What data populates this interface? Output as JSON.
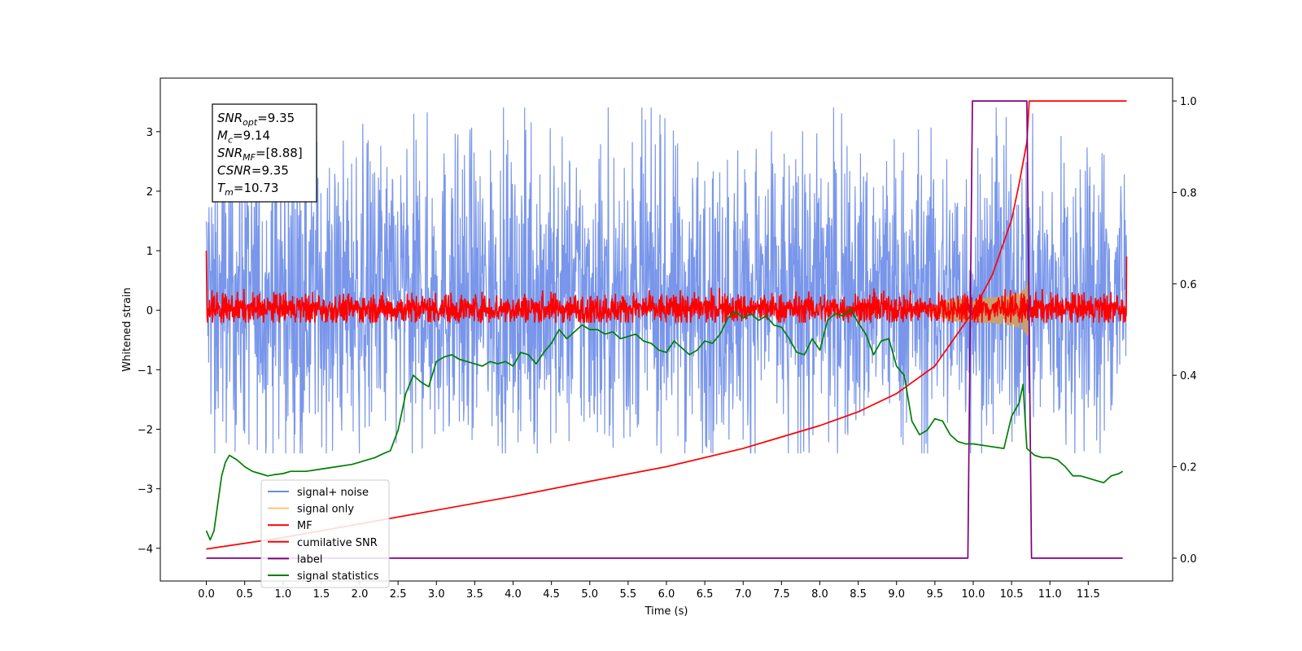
{
  "chart_data": {
    "type": "line",
    "title": "",
    "xlabel": "Time (s)",
    "ylabel": "Whitened strain",
    "ylabel_right": "",
    "xlim": [
      -0.6,
      12.6
    ],
    "ylim": [
      -4.55,
      3.9
    ],
    "ylim_right": [
      -0.05,
      1.05
    ],
    "x_ticks": [
      "0.0",
      "0.5",
      "1.0",
      "1.5",
      "2.0",
      "2.5",
      "3.0",
      "3.5",
      "4.0",
      "4.5",
      "5.0",
      "5.5",
      "6.0",
      "6.5",
      "7.0",
      "7.5",
      "8.0",
      "8.5",
      "9.0",
      "9.5",
      "10.0",
      "10.5",
      "11.0",
      "11.5"
    ],
    "y_ticks": [
      "3",
      "2",
      "1",
      "0",
      "−1",
      "−2",
      "−3",
      "−4"
    ],
    "y_right_ticks": [
      "1.0",
      "0.8",
      "0.6",
      "0.4",
      "0.2",
      "0.0"
    ],
    "legend_position": "lower-left",
    "legend": [
      {
        "name": "signal+ noise",
        "color": "#6a8be8"
      },
      {
        "name": "signal only",
        "color": "#f5c96e"
      },
      {
        "name": "MF",
        "color": "#ff0000"
      },
      {
        "name": "cumilative SNR",
        "color": "#ff0000"
      },
      {
        "name": "label",
        "color": "#800080"
      },
      {
        "name": "signal statistics",
        "color": "#007f00"
      }
    ],
    "annotation": [
      {
        "name": "SNR",
        "sub": "opt",
        "value": "=9.35"
      },
      {
        "name": "M",
        "sub": "c",
        "value": "=9.14"
      },
      {
        "name": "SNR",
        "sub": "MF",
        "value": "=[8.88]"
      },
      {
        "name": "CSNR",
        "sub": "",
        "value": "=9.35"
      },
      {
        "name": "T",
        "sub": "m",
        "value": "=10.73"
      }
    ],
    "series": [
      {
        "name": "signal+ noise",
        "axis": "left",
        "style": "noise",
        "color": "#6a8be8",
        "x_range": [
          0.0,
          12.0
        ],
        "envelope": [
          -2.4,
          3.4
        ],
        "band": [
          -1.5,
          2.0
        ]
      },
      {
        "name": "signal only",
        "axis": "left",
        "style": "chirp",
        "color": "#c8a070",
        "x_range": [
          9.4,
          10.73
        ],
        "amplitude_max": 0.75
      },
      {
        "name": "MF",
        "axis": "left",
        "style": "noise",
        "color": "#ff0000",
        "x_range": [
          0.0,
          12.0
        ],
        "band": [
          -0.15,
          0.2
        ],
        "envelope": [
          -0.2,
          0.38
        ],
        "start_value": 1.0,
        "end_value": 0.9
      },
      {
        "name": "cumilative SNR",
        "axis": "right",
        "color": "#ff0000",
        "x": [
          0.0,
          1.0,
          2.0,
          3.0,
          4.0,
          5.0,
          6.0,
          7.0,
          7.5,
          8.0,
          8.5,
          9.0,
          9.5,
          10.0,
          10.25,
          10.5,
          10.6,
          10.7,
          10.73,
          11.0,
          12.0
        ],
        "y": [
          0.02,
          0.045,
          0.075,
          0.105,
          0.135,
          0.168,
          0.2,
          0.24,
          0.265,
          0.29,
          0.32,
          0.36,
          0.42,
          0.54,
          0.62,
          0.74,
          0.82,
          0.91,
          1.0,
          1.0,
          1.0
        ]
      },
      {
        "name": "label",
        "axis": "right",
        "color": "#800080",
        "x": [
          0.0,
          9.93,
          9.99,
          10.7,
          10.76,
          11.95
        ],
        "y": [
          0.0,
          0.0,
          1.0,
          1.0,
          0.0,
          0.0
        ]
      },
      {
        "name": "signal statistics",
        "axis": "right",
        "color": "#007f00",
        "x": [
          0.0,
          0.05,
          0.1,
          0.15,
          0.2,
          0.25,
          0.3,
          0.4,
          0.5,
          0.6,
          0.7,
          0.8,
          0.9,
          1.0,
          1.1,
          1.3,
          1.5,
          1.7,
          1.9,
          2.0,
          2.1,
          2.2,
          2.3,
          2.4,
          2.5,
          2.6,
          2.7,
          2.8,
          2.9,
          3.0,
          3.1,
          3.2,
          3.3,
          3.4,
          3.5,
          3.6,
          3.7,
          3.8,
          3.9,
          4.0,
          4.1,
          4.2,
          4.3,
          4.4,
          4.5,
          4.6,
          4.7,
          4.8,
          4.9,
          5.0,
          5.1,
          5.2,
          5.3,
          5.4,
          5.5,
          5.6,
          5.7,
          5.8,
          5.9,
          6.0,
          6.1,
          6.2,
          6.3,
          6.4,
          6.5,
          6.6,
          6.7,
          6.8,
          6.9,
          7.0,
          7.1,
          7.2,
          7.3,
          7.4,
          7.5,
          7.6,
          7.7,
          7.8,
          7.9,
          8.0,
          8.1,
          8.2,
          8.3,
          8.4,
          8.5,
          8.6,
          8.7,
          8.8,
          8.9,
          9.0,
          9.1,
          9.2,
          9.3,
          9.4,
          9.5,
          9.6,
          9.7,
          9.8,
          9.9,
          10.0,
          10.2,
          10.4,
          10.5,
          10.6,
          10.65,
          10.7,
          10.8,
          10.9,
          11.0,
          11.1,
          11.2,
          11.3,
          11.4,
          11.5,
          11.6,
          11.7,
          11.8,
          11.9,
          11.95
        ],
        "y": [
          0.06,
          0.04,
          0.06,
          0.12,
          0.18,
          0.21,
          0.225,
          0.215,
          0.2,
          0.19,
          0.185,
          0.18,
          0.183,
          0.185,
          0.19,
          0.19,
          0.195,
          0.2,
          0.205,
          0.21,
          0.215,
          0.22,
          0.228,
          0.235,
          0.28,
          0.36,
          0.4,
          0.385,
          0.375,
          0.43,
          0.44,
          0.445,
          0.435,
          0.43,
          0.425,
          0.42,
          0.43,
          0.425,
          0.43,
          0.42,
          0.45,
          0.445,
          0.425,
          0.45,
          0.47,
          0.5,
          0.48,
          0.495,
          0.51,
          0.5,
          0.5,
          0.49,
          0.495,
          0.48,
          0.485,
          0.49,
          0.475,
          0.47,
          0.455,
          0.45,
          0.475,
          0.46,
          0.445,
          0.455,
          0.475,
          0.47,
          0.49,
          0.525,
          0.54,
          0.525,
          0.535,
          0.52,
          0.53,
          0.51,
          0.505,
          0.48,
          0.45,
          0.445,
          0.48,
          0.455,
          0.52,
          0.535,
          0.53,
          0.545,
          0.515,
          0.49,
          0.445,
          0.475,
          0.48,
          0.42,
          0.4,
          0.3,
          0.27,
          0.28,
          0.305,
          0.3,
          0.27,
          0.255,
          0.25,
          0.25,
          0.245,
          0.24,
          0.31,
          0.34,
          0.38,
          0.24,
          0.225,
          0.22,
          0.22,
          0.215,
          0.2,
          0.18,
          0.18,
          0.175,
          0.17,
          0.165,
          0.18,
          0.185,
          0.19
        ]
      }
    ]
  }
}
